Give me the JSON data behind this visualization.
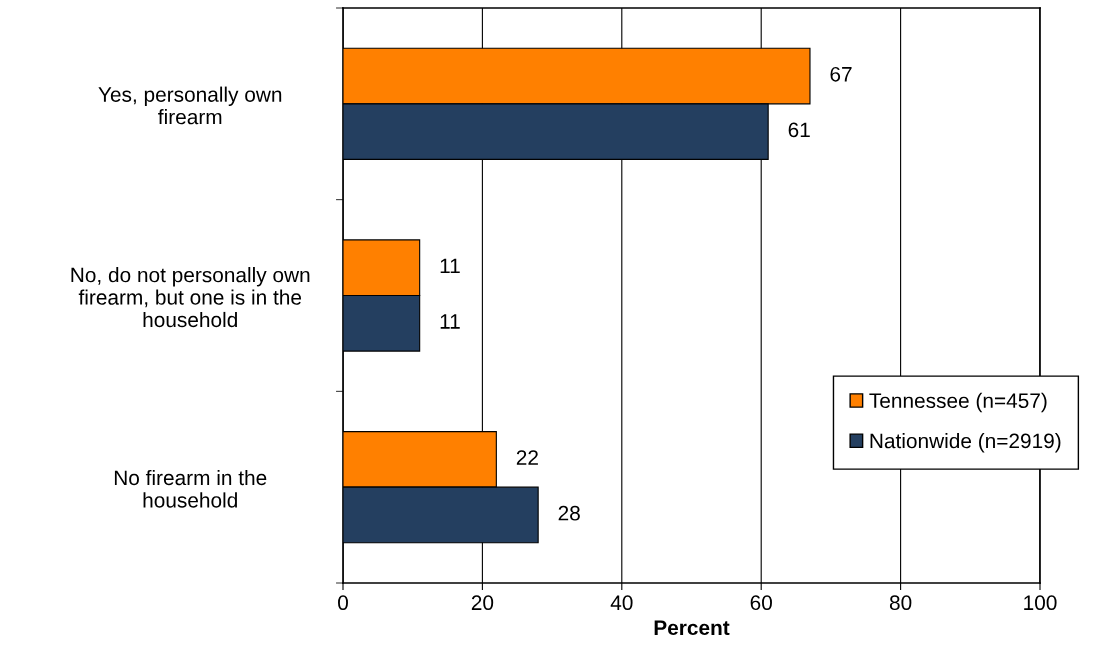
{
  "chart_data": {
    "type": "bar",
    "orientation": "horizontal",
    "xlabel": "Percent",
    "categories": [
      "Yes, personally own\nfirearm",
      "No, do not personally own\nfirearm, but one is in the\nhousehold",
      "No firearm in the\nhousehold"
    ],
    "series": [
      {
        "name": "Tennessee (n=457)",
        "color": "#ff8000",
        "values": [
          67,
          11,
          22
        ]
      },
      {
        "name": "Nationwide (n=2919)",
        "color": "#243f60",
        "values": [
          61,
          11,
          28
        ]
      }
    ],
    "xlim": [
      0,
      100
    ],
    "xticks": [
      0,
      20,
      40,
      60,
      80,
      100
    ],
    "grid": "x",
    "legend": "bottom right",
    "data_labels": true
  }
}
